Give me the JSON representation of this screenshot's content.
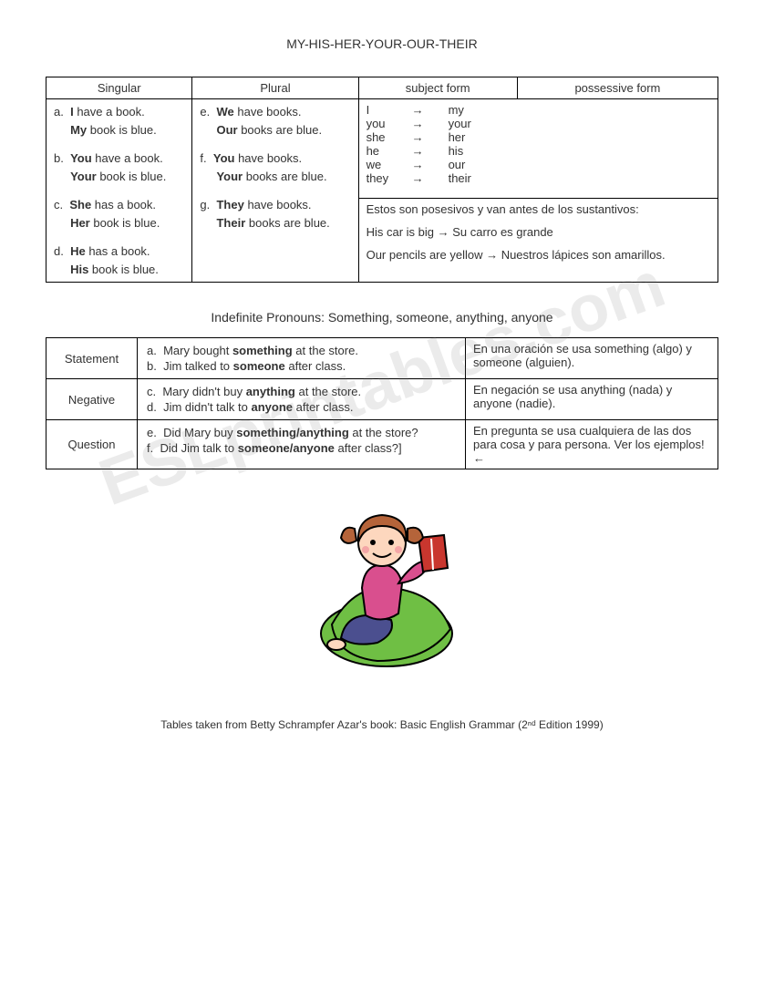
{
  "title": "MY-HIS-HER-YOUR-OUR-THEIR",
  "watermark": "ESLprintables.com",
  "table1": {
    "headers": {
      "singular": "Singular",
      "plural": "Plural",
      "subject": "subject form",
      "possessive": "possessive form"
    },
    "singular": [
      {
        "letter": "a.",
        "line1_pre": "",
        "line1_bold": "I",
        "line1_post": " have a book.",
        "line2_bold": "My",
        "line2_post": " book is blue."
      },
      {
        "letter": "b.",
        "line1_pre": "",
        "line1_bold": "You",
        "line1_post": " have a book.",
        "line2_bold": "Your",
        "line2_post": " book is blue."
      },
      {
        "letter": "c.",
        "line1_pre": "",
        "line1_bold": "She",
        "line1_post": " has a book.",
        "line2_bold": "Her",
        "line2_post": " book is blue."
      },
      {
        "letter": "d.",
        "line1_pre": "",
        "line1_bold": "He",
        "line1_post": " has a book.",
        "line2_bold": "His",
        "line2_post": " book is blue."
      }
    ],
    "plural": [
      {
        "letter": "e.",
        "line1_pre": "",
        "line1_bold": "We",
        "line1_post": " have books.",
        "line2_bold": "Our",
        "line2_post": " books are blue."
      },
      {
        "letter": "f.",
        "line1_pre": "",
        "line1_bold": "You",
        "line1_post": " have books.",
        "line2_bold": "Your",
        "line2_post": " books are blue."
      },
      {
        "letter": "g.",
        "line1_pre": "",
        "line1_bold": "They",
        "line1_post": " have books.",
        "line2_bold": "Their",
        "line2_post": " books are blue."
      }
    ],
    "pronouns": [
      {
        "sub": "I",
        "pos": "my"
      },
      {
        "sub": "you",
        "pos": "your"
      },
      {
        "sub": "she",
        "pos": "her"
      },
      {
        "sub": "he",
        "pos": "his"
      },
      {
        "sub": "we",
        "pos": "our"
      },
      {
        "sub": "they",
        "pos": "their"
      }
    ],
    "arrow": "→",
    "note1": "Estos son posesivos y van antes de los sustantivos:",
    "note2a": "His car is big → Su carro es grande",
    "note2b": "Our pencils are yellow → Nuestros lápices son amarillos."
  },
  "section2_title": "Indefinite Pronouns: Something, someone, anything, anyone",
  "table2": {
    "rows": [
      {
        "label": "Statement",
        "examples": [
          {
            "letter": "a.",
            "pre": "Mary bought ",
            "bold": "something",
            "post": " at the store."
          },
          {
            "letter": "b.",
            "pre": "Jim talked to ",
            "bold": "someone",
            "post": " after class."
          }
        ],
        "explain": "En una oración se usa something (algo) y someone (alguien)."
      },
      {
        "label": "Negative",
        "examples": [
          {
            "letter": "c.",
            "pre": "Mary didn't buy ",
            "bold": "anything",
            "post": " at the store."
          },
          {
            "letter": "d.",
            "pre": "Jim didn't talk to ",
            "bold": "anyone",
            "post": " after class."
          }
        ],
        "explain": "En negación se usa anything (nada) y anyone (nadie)."
      },
      {
        "label": "Question",
        "examples": [
          {
            "letter": "e.",
            "pre": "Did Mary buy ",
            "bold": "something/anything",
            "post": " at the store?"
          },
          {
            "letter": "f.",
            "pre": "Did Jim talk to ",
            "bold": "someone/anyone",
            "post": " after class?]"
          }
        ],
        "explain": "En pregunta se usa cualquiera de las dos para cosa y para persona. Ver los ejemplos! ←"
      }
    ]
  },
  "illustration": {
    "skin": "#fdd7be",
    "hair": "#b5643a",
    "shirt": "#d94f8e",
    "beanbag": "#6fbf44",
    "book": "#c9362e",
    "bookpage": "#ffffff",
    "pants": "#4b4f8f",
    "outline": "#000000"
  },
  "footer": "Tables taken from Betty Schrampfer Azar's book: Basic English Grammar (2ⁿᵈ Edition 1999)"
}
